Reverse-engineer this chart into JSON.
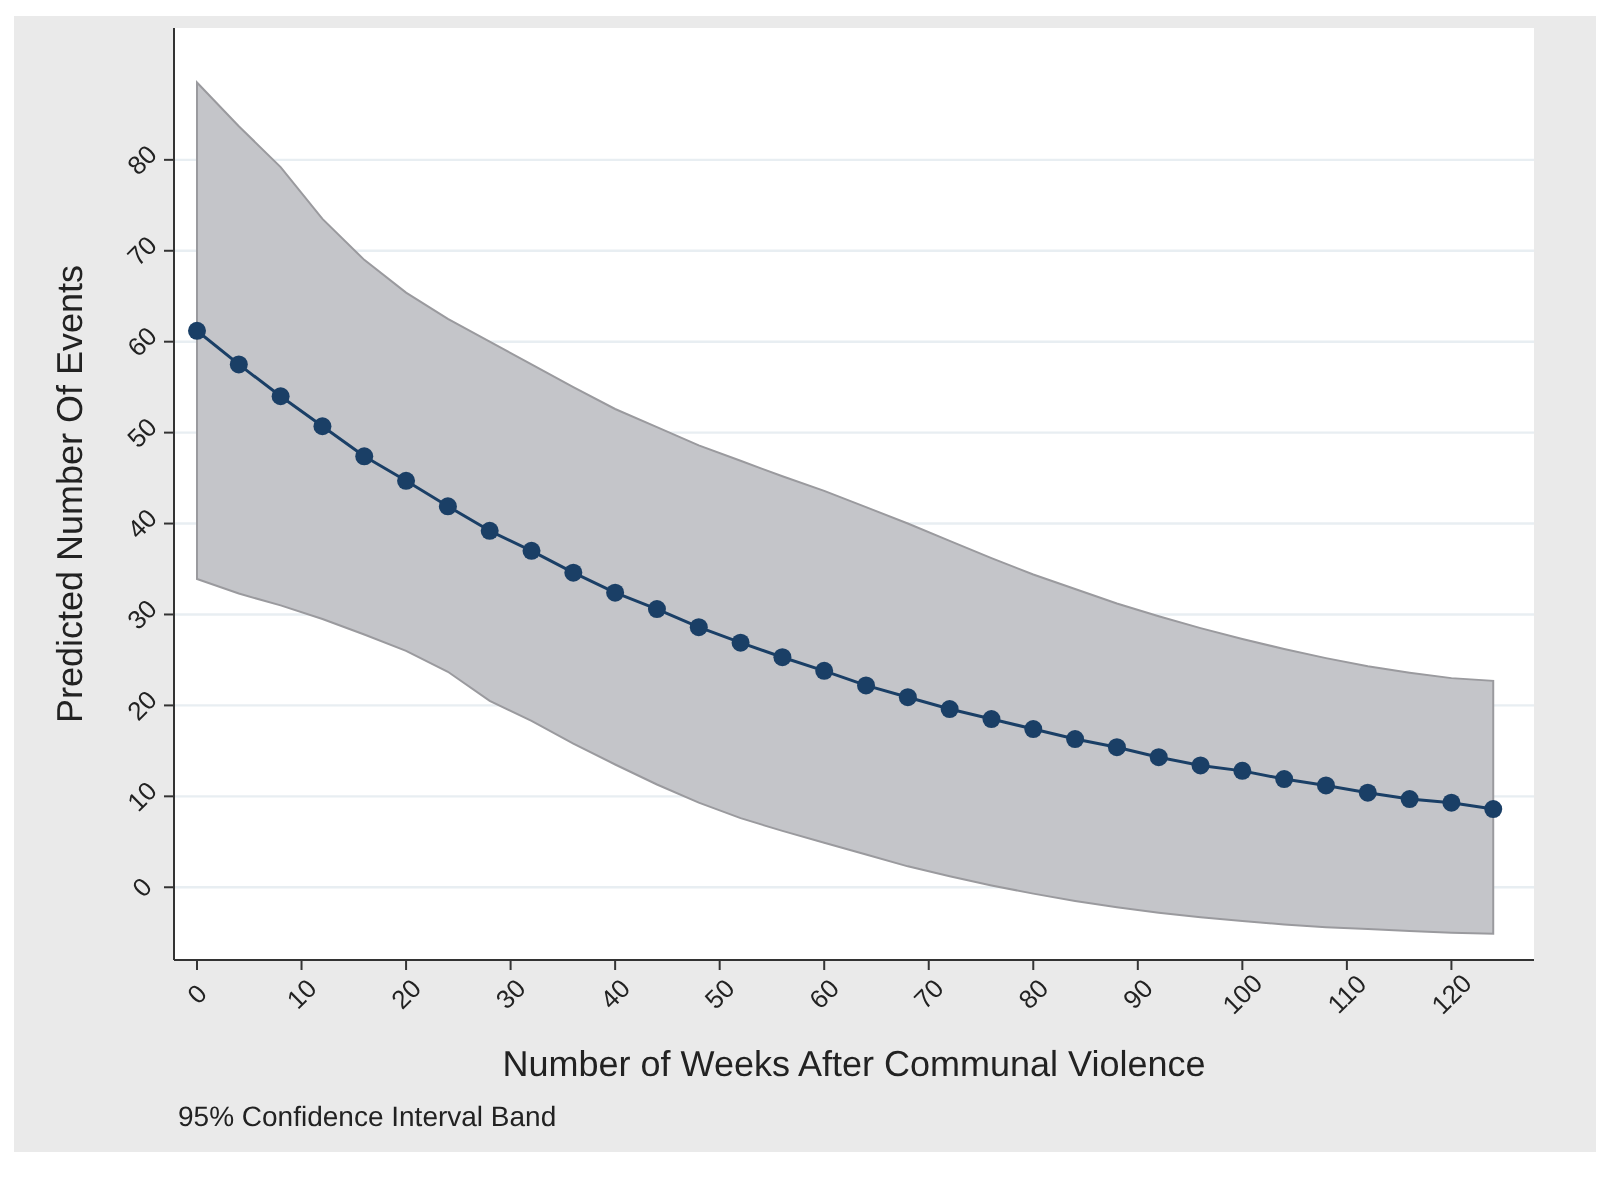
{
  "chart_data": {
    "type": "line",
    "xlabel": "Number of Weeks After Communal Violence",
    "ylabel": "Predicted Number Of Events",
    "annotations": [
      "95% Confidence Interval Band"
    ],
    "x": [
      0,
      4,
      8,
      12,
      16,
      20,
      24,
      28,
      32,
      36,
      40,
      44,
      48,
      52,
      56,
      60,
      64,
      68,
      72,
      76,
      80,
      84,
      88,
      92,
      96,
      100,
      104,
      108,
      112,
      116,
      120,
      124
    ],
    "series": [
      {
        "color": "#1a3f66",
        "values": [
          61.2,
          57.5,
          54,
          50.7,
          47.4,
          44.7,
          41.9,
          39.2,
          37,
          34.6,
          32.4,
          30.6,
          28.6,
          26.9,
          25.3,
          23.8,
          22.2,
          20.9,
          19.6,
          18.5,
          17.4,
          16.3,
          15.4,
          14.3,
          13.4,
          12.8,
          11.9,
          11.2,
          10.4,
          9.7,
          9.3,
          8.6
        ],
        "upper": [
          88.5,
          83.7,
          79.2,
          73.5,
          69,
          65.4,
          62.5,
          60,
          57.5,
          55,
          52.6,
          50.6,
          48.6,
          46.9,
          45.2,
          43.6,
          41.8,
          40,
          38.1,
          36.2,
          34.4,
          32.8,
          31.2,
          29.8,
          28.5,
          27.3,
          26.2,
          25.2,
          24.3,
          23.6,
          23,
          22.7
        ],
        "lower": [
          33.9,
          32.3,
          31,
          29.5,
          27.8,
          26,
          23.7,
          20.5,
          18.3,
          15.8,
          13.5,
          11.3,
          9.3,
          7.6,
          6.2,
          4.9,
          3.6,
          2.3,
          1.2,
          0.2,
          -0.7,
          -1.5,
          -2.2,
          -2.8,
          -3.3,
          -3.7,
          -4.1,
          -4.4,
          -4.6,
          -4.8,
          -5,
          -5.1
        ]
      }
    ],
    "xlim": [
      -2.2,
      127.9
    ],
    "ylim": [
      -8,
      94.5
    ],
    "xticks": [
      0,
      10,
      20,
      30,
      40,
      50,
      60,
      70,
      80,
      90,
      100,
      110,
      120
    ],
    "yticks": [
      0,
      10,
      20,
      30,
      40,
      50,
      60,
      70,
      80
    ],
    "grid": "y",
    "marker": "circle",
    "line_style": "solid"
  }
}
